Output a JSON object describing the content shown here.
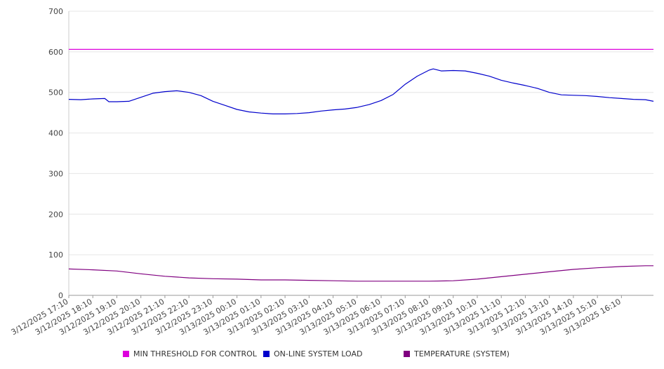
{
  "chart_data": {
    "type": "line",
    "title": "",
    "xlabel": "",
    "ylabel": "",
    "ylim": [
      0,
      700
    ],
    "yticks": [
      0,
      100,
      200,
      300,
      400,
      500,
      600,
      700
    ],
    "grid": "horizontal",
    "legend_position": "bottom",
    "x_start": "3/12/2025 17:10",
    "x_end": "3/13/2025 17:30",
    "xticks": [
      "3/12/2025 17:10",
      "3/12/2025 18:10",
      "3/12/2025 19:10",
      "3/12/2025 20:10",
      "3/12/2025 21:10",
      "3/12/2025 22:10",
      "3/12/2025 23:10",
      "3/13/2025 00:10",
      "3/13/2025 01:10",
      "3/13/2025 02:10",
      "3/13/2025 03:10",
      "3/13/2025 04:10",
      "3/13/2025 05:10",
      "3/13/2025 06:10",
      "3/13/2025 07:10",
      "3/13/2025 08:10",
      "3/13/2025 09:10",
      "3/13/2025 10:10",
      "3/13/2025 11:10",
      "3/13/2025 12:10",
      "3/13/2025 13:10",
      "3/13/2025 14:10",
      "3/13/2025 15:10",
      "3/13/2025 16:10"
    ],
    "series": [
      {
        "name": "MIN THRESHOLD FOR CONTROL",
        "color": "#dd00dd",
        "points": [
          [
            "3/12/2025 17:10",
            606
          ],
          [
            "3/13/2025 17:30",
            606
          ]
        ]
      },
      {
        "name": "ON-LINE SYSTEM LOAD",
        "color": "#0000cc",
        "points": [
          [
            "3/12/2025 17:10",
            483
          ],
          [
            "3/12/2025 17:40",
            482
          ],
          [
            "3/12/2025 18:10",
            484
          ],
          [
            "3/12/2025 18:40",
            485
          ],
          [
            "3/12/2025 18:50",
            477
          ],
          [
            "3/12/2025 19:10",
            477
          ],
          [
            "3/12/2025 19:40",
            478
          ],
          [
            "3/12/2025 20:10",
            488
          ],
          [
            "3/12/2025 20:40",
            498
          ],
          [
            "3/12/2025 21:10",
            502
          ],
          [
            "3/12/2025 21:40",
            504
          ],
          [
            "3/12/2025 22:10",
            500
          ],
          [
            "3/12/2025 22:40",
            492
          ],
          [
            "3/12/2025 23:10",
            478
          ],
          [
            "3/12/2025 23:40",
            468
          ],
          [
            "3/13/2025 00:10",
            458
          ],
          [
            "3/13/2025 00:40",
            452
          ],
          [
            "3/13/2025 01:10",
            449
          ],
          [
            "3/13/2025 01:40",
            447
          ],
          [
            "3/13/2025 02:10",
            447
          ],
          [
            "3/13/2025 02:40",
            448
          ],
          [
            "3/13/2025 03:10",
            450
          ],
          [
            "3/13/2025 03:40",
            454
          ],
          [
            "3/13/2025 04:10",
            457
          ],
          [
            "3/13/2025 04:40",
            459
          ],
          [
            "3/13/2025 05:10",
            463
          ],
          [
            "3/13/2025 05:40",
            470
          ],
          [
            "3/13/2025 06:10",
            480
          ],
          [
            "3/13/2025 06:40",
            495
          ],
          [
            "3/13/2025 07:10",
            520
          ],
          [
            "3/13/2025 07:40",
            540
          ],
          [
            "3/13/2025 08:10",
            555
          ],
          [
            "3/13/2025 08:20",
            558
          ],
          [
            "3/13/2025 08:40",
            553
          ],
          [
            "3/13/2025 09:10",
            554
          ],
          [
            "3/13/2025 09:40",
            553
          ],
          [
            "3/13/2025 10:10",
            547
          ],
          [
            "3/13/2025 10:40",
            540
          ],
          [
            "3/13/2025 11:10",
            530
          ],
          [
            "3/13/2025 11:40",
            523
          ],
          [
            "3/13/2025 12:10",
            517
          ],
          [
            "3/13/2025 12:40",
            510
          ],
          [
            "3/13/2025 13:10",
            500
          ],
          [
            "3/13/2025 13:40",
            494
          ],
          [
            "3/13/2025 14:10",
            493
          ],
          [
            "3/13/2025 14:40",
            492
          ],
          [
            "3/13/2025 15:10",
            490
          ],
          [
            "3/13/2025 15:40",
            487
          ],
          [
            "3/13/2025 16:10",
            485
          ],
          [
            "3/13/2025 16:40",
            483
          ],
          [
            "3/13/2025 17:10",
            482
          ],
          [
            "3/13/2025 17:30",
            478
          ]
        ]
      },
      {
        "name": "TEMPERATURE (SYSTEM)",
        "color": "#800080",
        "points": [
          [
            "3/12/2025 17:10",
            65
          ],
          [
            "3/12/2025 18:10",
            63
          ],
          [
            "3/12/2025 19:10",
            60
          ],
          [
            "3/12/2025 20:10",
            53
          ],
          [
            "3/12/2025 21:10",
            47
          ],
          [
            "3/12/2025 22:10",
            43
          ],
          [
            "3/12/2025 23:10",
            41
          ],
          [
            "3/13/2025 00:10",
            40
          ],
          [
            "3/13/2025 01:10",
            38
          ],
          [
            "3/13/2025 02:10",
            38
          ],
          [
            "3/13/2025 03:10",
            37
          ],
          [
            "3/13/2025 04:10",
            36
          ],
          [
            "3/13/2025 05:10",
            35
          ],
          [
            "3/13/2025 06:10",
            35
          ],
          [
            "3/13/2025 07:10",
            35
          ],
          [
            "3/13/2025 08:10",
            35
          ],
          [
            "3/13/2025 09:10",
            36
          ],
          [
            "3/13/2025 10:10",
            40
          ],
          [
            "3/13/2025 11:10",
            46
          ],
          [
            "3/13/2025 12:10",
            52
          ],
          [
            "3/13/2025 13:10",
            58
          ],
          [
            "3/13/2025 14:10",
            64
          ],
          [
            "3/13/2025 15:10",
            68
          ],
          [
            "3/13/2025 16:10",
            71
          ],
          [
            "3/13/2025 17:10",
            73
          ],
          [
            "3/13/2025 17:30",
            73
          ]
        ]
      }
    ]
  },
  "legend": {
    "items": [
      {
        "label": "MIN THRESHOLD FOR CONTROL",
        "color": "#dd00dd"
      },
      {
        "label": "ON-LINE SYSTEM LOAD",
        "color": "#0000cc"
      },
      {
        "label": "TEMPERATURE (SYSTEM)",
        "color": "#800080"
      }
    ]
  }
}
